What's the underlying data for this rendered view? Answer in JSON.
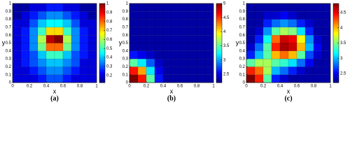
{
  "chart_data": [
    {
      "type": "heatmap",
      "caption": "(a)",
      "x_label": "x",
      "y_label": "y",
      "colormap": "jet",
      "xlim": [
        0,
        1
      ],
      "ylim": [
        0,
        1
      ],
      "xticks": [
        0,
        0.2,
        0.4,
        0.6,
        0.8,
        1
      ],
      "yticks": [
        0,
        0.1,
        0.2,
        0.3,
        0.4,
        0.5,
        0.6,
        0.7,
        0.8,
        0.9,
        1
      ],
      "zlim": [
        0.12,
        1
      ],
      "zticks": [
        0.2,
        0.3,
        0.4,
        0.5,
        0.6,
        0.7,
        0.8,
        0.9,
        1
      ],
      "z": [
        [
          0.2,
          0.2,
          0.2,
          0.25,
          0.3,
          0.3,
          0.25,
          0.2,
          0.2,
          0.2
        ],
        [
          0.2,
          0.2,
          0.25,
          0.3,
          0.35,
          0.35,
          0.3,
          0.25,
          0.2,
          0.2
        ],
        [
          0.2,
          0.25,
          0.3,
          0.35,
          0.4,
          0.4,
          0.35,
          0.3,
          0.2,
          0.2
        ],
        [
          0.2,
          0.25,
          0.3,
          0.4,
          0.5,
          0.5,
          0.4,
          0.3,
          0.25,
          0.2
        ],
        [
          0.2,
          0.25,
          0.35,
          0.55,
          0.8,
          0.8,
          0.55,
          0.35,
          0.25,
          0.2
        ],
        [
          0.2,
          0.25,
          0.35,
          0.6,
          0.95,
          1,
          0.6,
          0.35,
          0.25,
          0.2
        ],
        [
          0.2,
          0.25,
          0.35,
          0.5,
          0.7,
          0.7,
          0.5,
          0.35,
          0.25,
          0.2
        ],
        [
          0.2,
          0.2,
          0.3,
          0.4,
          0.45,
          0.45,
          0.4,
          0.3,
          0.2,
          0.2
        ],
        [
          0.15,
          0.2,
          0.25,
          0.3,
          0.35,
          0.35,
          0.3,
          0.25,
          0.2,
          0.15
        ],
        [
          0.15,
          0.15,
          0.2,
          0.2,
          0.25,
          0.25,
          0.2,
          0.2,
          0.15,
          0.15
        ]
      ]
    },
    {
      "type": "heatmap",
      "caption": "(b)",
      "x_label": "x",
      "y_label": "y",
      "colormap": "jet",
      "xlim": [
        0,
        1
      ],
      "ylim": [
        0,
        1
      ],
      "xticks": [
        0,
        0.2,
        0.4,
        0.6,
        0.8,
        1
      ],
      "yticks": [
        0,
        0.1,
        0.2,
        0.3,
        0.4,
        0.5,
        0.6,
        0.7,
        0.8,
        0.9,
        1
      ],
      "zlim": [
        2.2,
        5
      ],
      "zticks": [
        2.5,
        3,
        3.5,
        4,
        4.5,
        5
      ],
      "z": [
        [
          5,
          4.6,
          3.5,
          2.6,
          2.3,
          2.3,
          2.3,
          2.3,
          2.3,
          2.3
        ],
        [
          4.6,
          4.2,
          3.2,
          2.5,
          2.3,
          2.3,
          2.3,
          2.3,
          2.3,
          2.3
        ],
        [
          3.5,
          3.2,
          2.8,
          2.4,
          2.3,
          2.3,
          2.3,
          2.3,
          2.3,
          2.3
        ],
        [
          2.6,
          2.5,
          2.4,
          2.3,
          2.3,
          2.3,
          2.3,
          2.3,
          2.3,
          2.3
        ],
        [
          2.3,
          2.3,
          2.3,
          2.3,
          2.3,
          2.3,
          2.3,
          2.3,
          2.3,
          2.3
        ],
        [
          2.3,
          2.3,
          2.3,
          2.3,
          2.3,
          2.3,
          2.3,
          2.3,
          2.3,
          2.3
        ],
        [
          2.3,
          2.3,
          2.3,
          2.3,
          2.3,
          2.3,
          2.3,
          2.3,
          2.3,
          2.3
        ],
        [
          2.3,
          2.3,
          2.3,
          2.3,
          2.3,
          2.3,
          2.3,
          2.3,
          2.3,
          2.3
        ],
        [
          2.3,
          2.3,
          2.3,
          2.3,
          2.3,
          2.3,
          2.3,
          2.3,
          2.3,
          2.3
        ],
        [
          2.3,
          2.3,
          2.3,
          2.3,
          2.3,
          2.3,
          2.3,
          2.3,
          2.3,
          2.3
        ]
      ]
    },
    {
      "type": "heatmap",
      "caption": "(c)",
      "x_label": "x",
      "y_label": "y",
      "colormap": "jet",
      "xlim": [
        0,
        1
      ],
      "ylim": [
        0,
        1
      ],
      "xticks": [
        0,
        0.2,
        0.4,
        0.6,
        0.8,
        1
      ],
      "yticks": [
        0,
        0.1,
        0.2,
        0.3,
        0.4,
        0.5,
        0.6,
        0.7,
        0.8,
        0.9,
        1
      ],
      "zlim": [
        2.2,
        4.8
      ],
      "zticks": [
        2.5,
        3,
        3.5,
        4,
        4.5
      ],
      "z": [
        [
          4.8,
          4.4,
          3.4,
          2.6,
          2.4,
          2.3,
          2.3,
          2.3,
          2.3,
          2.3
        ],
        [
          4.4,
          4.2,
          3.6,
          3.0,
          2.8,
          2.6,
          2.4,
          2.3,
          2.3,
          2.3
        ],
        [
          3.4,
          3.6,
          3.6,
          3.4,
          3.3,
          3.1,
          2.8,
          2.5,
          2.3,
          2.3
        ],
        [
          2.6,
          3.0,
          3.4,
          4.0,
          4.2,
          4.0,
          3.4,
          2.7,
          2.4,
          2.3
        ],
        [
          2.4,
          2.8,
          3.4,
          4.4,
          4.7,
          4.6,
          4.0,
          3.0,
          2.5,
          2.3
        ],
        [
          2.3,
          2.6,
          3.2,
          4.2,
          4.6,
          4.5,
          3.8,
          2.9,
          2.4,
          2.3
        ],
        [
          2.3,
          2.4,
          2.9,
          3.4,
          3.6,
          3.5,
          3.1,
          2.6,
          2.3,
          2.3
        ],
        [
          2.3,
          2.3,
          2.6,
          2.8,
          2.9,
          2.8,
          2.6,
          2.4,
          2.3,
          2.3
        ],
        [
          2.3,
          2.3,
          2.4,
          2.4,
          2.5,
          2.4,
          2.3,
          2.3,
          2.3,
          2.3
        ],
        [
          2.3,
          2.3,
          2.3,
          2.3,
          2.3,
          2.3,
          2.3,
          2.3,
          2.3,
          2.3
        ]
      ]
    }
  ]
}
